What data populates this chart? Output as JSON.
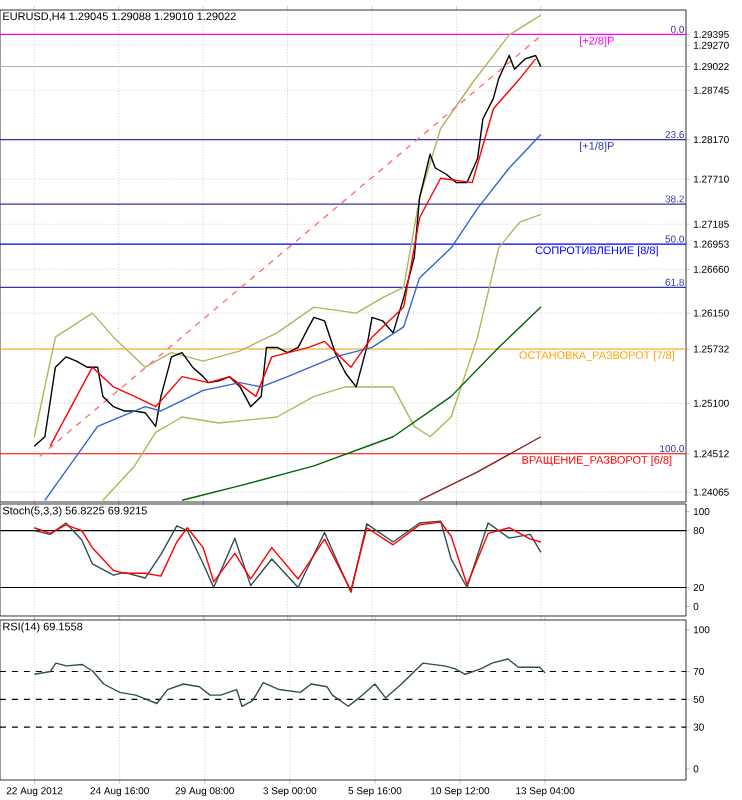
{
  "chart_data": [
    {
      "type": "line",
      "title": "EURUSD,H4  1.29045 1.29088 1.29010 1.29022",
      "ylim": [
        1.2395,
        1.2968
      ],
      "grid": true,
      "categories": [
        null,
        null,
        null,
        null,
        null,
        null,
        null,
        null,
        null,
        null,
        null,
        null,
        null,
        null,
        null,
        null,
        null,
        null,
        null,
        null,
        null,
        null,
        null,
        null,
        null,
        null,
        null,
        null,
        null,
        null,
        null,
        null,
        null,
        null,
        null,
        null,
        null,
        null,
        null,
        null,
        null,
        null,
        null,
        null,
        null,
        null,
        null,
        null,
        null,
        null,
        null,
        null,
        null,
        null,
        null,
        null,
        null,
        null,
        null,
        null,
        null,
        null,
        null,
        null,
        null,
        null,
        null,
        null,
        null,
        null,
        null,
        null,
        null,
        null,
        null,
        null,
        null,
        null,
        null,
        null,
        null,
        null,
        null,
        null,
        null,
        null,
        null,
        null,
        null,
        null,
        null,
        null,
        null,
        null,
        null,
        null,
        null,
        null,
        null,
        null,
        null,
        null,
        null,
        null,
        null,
        null,
        null,
        null,
        null,
        null,
        null,
        null,
        null,
        null,
        null,
        null,
        null,
        null,
        null,
        null,
        null,
        null,
        null,
        null,
        null,
        null,
        null,
        null,
        null,
        null
      ],
      "yticks": [
        {
          "value": 1.24065,
          "label": "1.24065"
        },
        {
          "value": 1.24512,
          "label": "1.24512"
        },
        {
          "value": 1.251,
          "label": "1.25100"
        },
        {
          "value": 1.25732,
          "label": "1.25732"
        },
        {
          "value": 1.2615,
          "label": "1.26150"
        },
        {
          "value": 1.2666,
          "label": "1.26660"
        },
        {
          "value": 1.26953,
          "label": "1.26953"
        },
        {
          "value": 1.27185,
          "label": "1.27185"
        },
        {
          "value": 1.2771,
          "label": "1.27710"
        },
        {
          "value": 1.2817,
          "label": "1.28170"
        },
        {
          "value": 1.28745,
          "label": "1.28745"
        },
        {
          "value": 1.29022,
          "label": "1.29022"
        },
        {
          "value": 1.2927,
          "label": "1.29270"
        },
        {
          "value": 1.29395,
          "label": "1.29395"
        }
      ],
      "series": [
        {
          "color": "#b5b35c",
          "values": [
            null,
            null,
            null,
            null,
            null,
            null,
            1.2471,
            null,
            null,
            null,
            1.2587,
            null,
            null,
            null,
            null,
            null,
            null,
            1.2615,
            null,
            null,
            null,
            1.2587,
            null,
            null,
            null,
            null,
            null,
            1.2552,
            null,
            null,
            null,
            null,
            1.2569,
            null,
            null,
            null,
            null,
            null,
            1.2559,
            null,
            null,
            null,
            null,
            null,
            null,
            1.2571,
            null,
            null,
            null,
            null,
            null,
            null,
            1.2592,
            null,
            null,
            null,
            null,
            null,
            null,
            1.2622,
            null,
            null,
            null,
            null,
            null,
            null,
            null,
            1.2615,
            null,
            null,
            null,
            null,
            1.2633,
            null,
            null,
            null,
            1.2645,
            null,
            null,
            1.2749,
            null,
            null,
            null,
            1.283,
            null,
            null,
            null,
            null,
            null,
            1.2883,
            null,
            null,
            null,
            null,
            null,
            null,
            1.2939,
            null,
            null,
            null,
            null,
            null,
            1.2962,
            null,
            null,
            null,
            null,
            null,
            null,
            null,
            null,
            null,
            null,
            null,
            null,
            null,
            null,
            null,
            null,
            null,
            null,
            null,
            null,
            null,
            null,
            null,
            null,
            null,
            null,
            null
          ]
        },
        {
          "color": "#b5b35c",
          "values": [
            null,
            null,
            null,
            null,
            null,
            null,
            null,
            null,
            null,
            null,
            null,
            null,
            null,
            null,
            null,
            null,
            null,
            null,
            null,
            1.2397,
            null,
            null,
            null,
            null,
            null,
            1.2437,
            null,
            null,
            null,
            1.2476,
            null,
            null,
            null,
            null,
            1.2494,
            null,
            null,
            null,
            null,
            null,
            null,
            1.2487,
            null,
            null,
            null,
            null,
            null,
            null,
            null,
            null,
            null,
            null,
            1.2494,
            null,
            null,
            null,
            null,
            null,
            null,
            1.2518,
            null,
            null,
            null,
            null,
            null,
            1.2529,
            null,
            null,
            null,
            null,
            null,
            null,
            null,
            null,
            1.2529,
            null,
            null,
            null,
            1.2483,
            null,
            null,
            1.2471,
            null,
            null,
            null,
            1.2494,
            null,
            null,
            null,
            null,
            1.2587,
            null,
            null,
            null,
            1.2691,
            null,
            null,
            null,
            1.2721,
            null,
            null,
            null,
            1.273,
            null,
            null,
            null,
            null,
            null,
            null,
            null,
            null,
            null,
            null,
            null,
            null,
            null,
            null,
            null,
            null,
            null,
            null,
            null,
            null,
            null,
            null,
            null,
            null,
            null,
            null,
            null
          ]
        },
        {
          "color": "#ff7070",
          "line_style": "dashed",
          "values": [
            null,
            null,
            null,
            null,
            null,
            null,
            null,
            1.2448,
            null,
            null,
            null,
            null,
            null,
            null,
            null,
            null,
            null,
            null,
            null,
            null,
            null,
            null,
            null,
            null,
            null,
            null,
            null,
            null,
            null,
            null,
            null,
            null,
            null,
            null,
            null,
            null,
            null,
            null,
            null,
            null,
            null,
            null,
            null,
            null,
            null,
            null,
            null,
            null,
            null,
            null,
            null,
            null,
            null,
            null,
            null,
            null,
            null,
            null,
            null,
            null,
            null,
            null,
            null,
            null,
            null,
            null,
            null,
            null,
            null,
            null,
            null,
            null,
            null,
            null,
            null,
            null,
            null,
            null,
            null,
            null,
            null,
            null,
            null,
            null,
            null,
            null,
            null,
            null,
            null,
            null,
            null,
            null,
            null,
            null,
            null,
            null,
            null,
            null,
            null,
            null,
            null,
            null,
            1.2938,
            null,
            null,
            null,
            null,
            null,
            null,
            null,
            null,
            null,
            null,
            null,
            null,
            null,
            null,
            null,
            null,
            null,
            null,
            null,
            null,
            null,
            null,
            null,
            null,
            null,
            null,
            null
          ]
        },
        {
          "color": "#006400",
          "values": [
            null,
            null,
            null,
            null,
            null,
            null,
            null,
            null,
            null,
            null,
            null,
            null,
            null,
            null,
            null,
            null,
            null,
            null,
            null,
            null,
            null,
            null,
            null,
            null,
            null,
            null,
            null,
            null,
            null,
            null,
            null,
            null,
            null,
            null,
            1.2397,
            null,
            null,
            null,
            null,
            null,
            null,
            null,
            null,
            null,
            null,
            1.2414,
            null,
            null,
            null,
            null,
            null,
            null,
            null,
            null,
            null,
            null,
            null,
            null,
            null,
            1.2437,
            null,
            null,
            null,
            null,
            null,
            null,
            null,
            null,
            null,
            null,
            null,
            null,
            null,
            null,
            1.2471,
            null,
            null,
            null,
            null,
            null,
            null,
            null,
            null,
            null,
            null,
            1.2518,
            null,
            null,
            null,
            null,
            null,
            null,
            null,
            null,
            1.2575,
            null,
            null,
            null,
            null,
            null,
            null,
            null,
            1.2622,
            null,
            null,
            null,
            null,
            null,
            null,
            null,
            null,
            null,
            null,
            null,
            null,
            null,
            null,
            null,
            null,
            null,
            null,
            null,
            null,
            null,
            null,
            null,
            null,
            null,
            null,
            null
          ]
        },
        {
          "color": "#8b1a1a",
          "values": [
            null,
            null,
            null,
            null,
            null,
            null,
            null,
            null,
            null,
            null,
            null,
            null,
            null,
            null,
            null,
            null,
            null,
            null,
            null,
            null,
            null,
            null,
            null,
            null,
            null,
            null,
            null,
            null,
            null,
            null,
            null,
            null,
            null,
            null,
            null,
            null,
            null,
            null,
            null,
            null,
            null,
            null,
            null,
            null,
            null,
            null,
            null,
            null,
            null,
            null,
            null,
            null,
            null,
            null,
            null,
            null,
            null,
            null,
            null,
            null,
            null,
            null,
            null,
            null,
            null,
            null,
            null,
            null,
            null,
            null,
            null,
            null,
            null,
            null,
            null,
            null,
            null,
            null,
            null,
            1.2397,
            null,
            null,
            null,
            null,
            null,
            null,
            null,
            null,
            null,
            null,
            1.243,
            null,
            null,
            null,
            null,
            null,
            null,
            null,
            null,
            null,
            null,
            null,
            1.2471,
            null,
            null,
            null,
            null,
            null,
            null,
            null,
            null,
            null,
            null,
            null,
            null,
            null,
            null,
            null,
            null,
            null,
            null,
            null,
            null,
            null,
            null,
            null,
            null,
            null,
            null,
            null
          ]
        },
        {
          "color": "#000000",
          "values": [
            null,
            null,
            null,
            null,
            null,
            null,
            1.246,
            null,
            1.2471,
            null,
            1.2552,
            null,
            1.2564,
            null,
            1.2559,
            null,
            1.2552,
            null,
            1.2552,
            1.2518,
            null,
            1.2506,
            null,
            1.2501,
            null,
            1.2501,
            null,
            1.2499,
            null,
            1.2483,
            1.2518,
            null,
            1.2564,
            null,
            1.2569,
            null,
            1.2552,
            null,
            1.2541,
            1.2534,
            null,
            1.2536,
            null,
            1.2541,
            null,
            1.2529,
            null,
            1.2506,
            null,
            1.2518,
            1.2575,
            null,
            1.2575,
            null,
            1.2569,
            null,
            1.2575,
            null,
            1.2599,
            1.261,
            null,
            1.2606,
            null,
            1.2569,
            null,
            1.2545,
            null,
            1.2529,
            null,
            1.2575,
            1.261,
            null,
            1.2606,
            null,
            1.2592,
            null,
            1.2633,
            null,
            1.268,
            1.2749,
            null,
            1.28,
            1.2784,
            null,
            1.2777,
            null,
            1.2767,
            null,
            1.2767,
            null,
            1.2795,
            1.2841,
            null,
            1.2865,
            1.2888,
            null,
            1.2915,
            1.2899,
            null,
            1.2911,
            null,
            1.2915,
            1.2902,
            null,
            null,
            null,
            null,
            null,
            null,
            null,
            null,
            null,
            null,
            null,
            null,
            null,
            null,
            null,
            null,
            null,
            null,
            null,
            null,
            null,
            null,
            null,
            null,
            null,
            null,
            null
          ]
        },
        {
          "color": "#3366cc",
          "values": [
            null,
            null,
            null,
            null,
            null,
            null,
            null,
            null,
            1.2397,
            null,
            null,
            null,
            null,
            null,
            null,
            null,
            null,
            null,
            1.2483,
            null,
            null,
            null,
            null,
            null,
            null,
            null,
            null,
            1.2506,
            null,
            null,
            1.2501,
            null,
            null,
            null,
            null,
            null,
            null,
            null,
            1.2525,
            null,
            null,
            null,
            null,
            null,
            null,
            1.2534,
            null,
            null,
            null,
            1.2529,
            null,
            null,
            null,
            null,
            1.2541,
            null,
            null,
            null,
            null,
            null,
            null,
            null,
            null,
            1.2564,
            null,
            null,
            null,
            null,
            null,
            null,
            1.2575,
            null,
            null,
            null,
            null,
            null,
            1.2599,
            null,
            null,
            1.2656,
            null,
            null,
            null,
            null,
            null,
            1.2691,
            null,
            null,
            null,
            null,
            1.2737,
            null,
            null,
            null,
            null,
            null,
            1.2784,
            null,
            null,
            null,
            null,
            null,
            1.2823,
            null,
            null,
            null,
            null,
            null,
            null,
            null,
            null,
            null,
            null,
            null,
            null,
            null,
            null,
            null,
            null,
            null,
            null,
            null,
            null,
            null,
            null,
            null,
            null,
            null,
            null,
            null
          ]
        },
        {
          "color": "#ff0000",
          "values": [
            null,
            null,
            null,
            null,
            null,
            null,
            null,
            null,
            null,
            1.246,
            null,
            null,
            null,
            null,
            null,
            null,
            null,
            1.2552,
            null,
            null,
            null,
            1.2529,
            null,
            null,
            null,
            1.2518,
            null,
            null,
            null,
            1.2506,
            null,
            null,
            null,
            null,
            1.2541,
            null,
            null,
            null,
            null,
            1.2534,
            null,
            null,
            null,
            1.2541,
            null,
            null,
            null,
            null,
            1.2518,
            null,
            null,
            1.2564,
            null,
            null,
            null,
            null,
            null,
            null,
            1.2575,
            null,
            null,
            1.2582,
            null,
            null,
            null,
            null,
            1.2552,
            null,
            null,
            null,
            1.2587,
            null,
            null,
            null,
            null,
            null,
            1.2622,
            null,
            null,
            1.2726,
            null,
            null,
            null,
            1.2772,
            null,
            null,
            null,
            null,
            null,
            1.2767,
            null,
            null,
            null,
            1.2853,
            null,
            null,
            null,
            null,
            1.2888,
            null,
            null,
            1.2911,
            null,
            null,
            null,
            null,
            null,
            null,
            null,
            null,
            null,
            null,
            null,
            null,
            null,
            null,
            null,
            null,
            null,
            null,
            null,
            null,
            null,
            null,
            null,
            null,
            null,
            null,
            null,
            null
          ]
        }
      ],
      "ref_lines": [
        {
          "axis": "y",
          "value": 1.29395,
          "label": "[+2/8]P",
          "color": "#ff00ff"
        },
        {
          "axis": "y",
          "value": 1.2817,
          "label": "[+1/8]P",
          "color": "#3333aa"
        },
        {
          "axis": "y",
          "value": 1.2742,
          "color": "#3333aa"
        },
        {
          "axis": "y",
          "value": 1.26953,
          "label": "СОПРОТИВЛЕНИЕ [8/8]",
          "color": "#0000ff"
        },
        {
          "axis": "y",
          "value": 1.2645,
          "color": "#3333aa"
        },
        {
          "axis": "y",
          "value": 1.24512,
          "label": "ВРАЩЕНИЕ_РАЗВОРОТ [6/8]",
          "color": "#ff0000"
        },
        {
          "axis": "y",
          "value": 1.25732,
          "label": "ОСТАНОВКА_РАЗВОРОТ [7/8]",
          "color": "#ffa500"
        },
        {
          "axis": "y",
          "value": 1.29022,
          "color": "#b0b0b0"
        }
      ],
      "annotations": [
        "0.0",
        "23.6",
        "38.2",
        "50.0",
        "61.8",
        "100.0"
      ]
    },
    {
      "type": "line",
      "title": "Stoch(5,3,3) 56.8225 69.9215",
      "ylim": [
        -10,
        108
      ],
      "grid": "x",
      "categories": [
        null,
        null,
        null,
        null,
        null,
        null,
        null,
        null,
        null,
        null,
        null,
        null,
        null,
        null,
        null,
        null,
        null,
        null,
        null,
        null,
        null,
        null,
        null,
        null,
        null,
        null,
        null,
        null,
        null,
        null,
        null,
        null,
        null,
        null,
        null,
        null,
        null,
        null,
        null,
        null,
        null,
        null,
        null,
        null,
        null,
        null,
        null,
        null,
        null,
        null,
        null,
        null,
        null,
        null,
        null,
        null,
        null,
        null,
        null,
        null,
        null,
        null,
        null,
        null,
        null,
        null,
        null,
        null,
        null,
        null,
        null,
        null,
        null,
        null,
        null,
        null,
        null,
        null,
        null,
        null,
        null,
        null,
        null,
        null,
        null,
        null,
        null,
        null,
        null,
        null,
        null,
        null,
        null,
        null,
        null,
        null,
        null,
        null,
        null,
        null,
        null,
        null,
        null,
        null,
        null,
        null,
        null,
        null,
        null,
        null,
        null,
        null,
        null,
        null,
        null,
        null,
        null,
        null,
        null,
        null,
        null,
        null,
        null,
        null,
        null,
        null,
        null,
        null,
        null,
        null
      ],
      "yticks": [
        0,
        20,
        80,
        100
      ],
      "series": [
        {
          "color": "#2f4f4f",
          "values": [
            null,
            null,
            null,
            null,
            null,
            null,
            80,
            null,
            null,
            76,
            null,
            null,
            88,
            null,
            null,
            70,
            null,
            45,
            null,
            null,
            null,
            33,
            null,
            36,
            null,
            null,
            null,
            30,
            null,
            null,
            55,
            null,
            null,
            85,
            null,
            80,
            null,
            null,
            45,
            null,
            20,
            null,
            null,
            null,
            72,
            null,
            null,
            22,
            null,
            null,
            null,
            50,
            null,
            null,
            null,
            null,
            20,
            null,
            null,
            null,
            null,
            78,
            null,
            null,
            null,
            null,
            15,
            null,
            null,
            87,
            null,
            null,
            null,
            null,
            68,
            null,
            null,
            null,
            null,
            88,
            null,
            null,
            null,
            90,
            null,
            50,
            null,
            null,
            20,
            null,
            null,
            null,
            88,
            null,
            null,
            null,
            72,
            null,
            null,
            null,
            76,
            null,
            57,
            null,
            null,
            null,
            null,
            null,
            null,
            null,
            null,
            null,
            null,
            null,
            null,
            null,
            null,
            null,
            null,
            null,
            null,
            null,
            null,
            null,
            null,
            null,
            null,
            null,
            null,
            null
          ]
        },
        {
          "color": "#ff0000",
          "values": [
            null,
            null,
            null,
            null,
            null,
            null,
            83,
            null,
            null,
            77,
            null,
            null,
            86,
            null,
            null,
            80,
            null,
            62,
            null,
            null,
            null,
            38,
            null,
            35,
            null,
            null,
            null,
            35,
            null,
            null,
            32,
            null,
            null,
            68,
            null,
            83,
            null,
            null,
            62,
            null,
            26,
            null,
            null,
            null,
            56,
            null,
            null,
            29,
            null,
            null,
            null,
            62,
            null,
            null,
            null,
            null,
            29,
            null,
            null,
            null,
            null,
            71,
            null,
            null,
            null,
            null,
            17,
            null,
            null,
            83,
            null,
            null,
            null,
            null,
            65,
            null,
            null,
            null,
            null,
            86,
            null,
            null,
            null,
            89,
            null,
            74,
            null,
            null,
            23,
            null,
            null,
            null,
            77,
            null,
            null,
            null,
            83,
            null,
            null,
            null,
            71,
            null,
            68,
            null,
            null,
            null,
            null,
            null,
            null,
            null,
            null,
            null,
            null,
            null,
            null,
            null,
            null,
            null,
            null,
            null,
            null,
            null,
            null,
            null,
            null,
            null,
            null,
            null,
            null,
            null
          ]
        }
      ],
      "ref_lines": [
        {
          "axis": "y",
          "value": 80,
          "color": "#000000"
        },
        {
          "axis": "y",
          "value": 20,
          "color": "#000000"
        }
      ]
    },
    {
      "type": "line",
      "title": "RSI(14) 69.1558",
      "ylim": [
        -8,
        107
      ],
      "grid": "x",
      "categories": [
        null,
        null,
        null,
        null,
        null,
        null,
        "22 Aug 2012",
        null,
        null,
        null,
        null,
        null,
        null,
        null,
        null,
        null,
        null,
        null,
        null,
        null,
        null,
        null,
        "24 Aug 16:00",
        null,
        null,
        null,
        null,
        null,
        null,
        null,
        null,
        null,
        null,
        null,
        null,
        null,
        null,
        null,
        "29 Aug 08:00",
        null,
        null,
        null,
        null,
        null,
        null,
        null,
        null,
        null,
        null,
        null,
        null,
        null,
        null,
        null,
        "3 Sep 00:00",
        null,
        null,
        null,
        null,
        null,
        null,
        null,
        null,
        null,
        null,
        null,
        null,
        null,
        null,
        null,
        "5 Sep 16:00",
        null,
        null,
        null,
        null,
        null,
        null,
        null,
        null,
        null,
        null,
        null,
        null,
        null,
        null,
        null,
        "10 Sep 12:00",
        null,
        null,
        null,
        null,
        null,
        null,
        null,
        null,
        null,
        null,
        null,
        null,
        null,
        null,
        null,
        "13 Sep 04:00",
        null,
        null,
        null,
        null,
        null,
        null,
        null,
        null,
        null,
        null,
        null,
        null,
        null,
        null,
        null,
        null,
        null,
        null,
        null,
        null,
        null,
        null,
        null,
        null,
        null,
        null
      ],
      "yticks": [
        0,
        30,
        50,
        70,
        100
      ],
      "series": [
        {
          "color": "#2f4f4f",
          "values": [
            null,
            null,
            null,
            null,
            null,
            null,
            68,
            null,
            null,
            70,
            76,
            null,
            74,
            null,
            null,
            75,
            null,
            70,
            null,
            61,
            null,
            null,
            55,
            null,
            null,
            53,
            null,
            null,
            null,
            47,
            null,
            57,
            null,
            null,
            61,
            null,
            null,
            59,
            null,
            53,
            null,
            53,
            null,
            null,
            57,
            45,
            null,
            49,
            null,
            62,
            null,
            null,
            57,
            null,
            null,
            null,
            55,
            null,
            61,
            null,
            null,
            59,
            53,
            null,
            null,
            45,
            null,
            51,
            null,
            null,
            61,
            null,
            51,
            null,
            null,
            61,
            null,
            null,
            null,
            76,
            null,
            null,
            null,
            74,
            null,
            72,
            null,
            68,
            null,
            null,
            72,
            null,
            76,
            null,
            null,
            79,
            null,
            73,
            null,
            null,
            null,
            73,
            69,
            null,
            null,
            null,
            null,
            null,
            null,
            null,
            null,
            null,
            null,
            null,
            null,
            null,
            null,
            null,
            null,
            null,
            null,
            null,
            null,
            null,
            null,
            null,
            null,
            null,
            null
          ]
        }
      ],
      "ref_lines": [
        {
          "axis": "y",
          "value": 70,
          "color": "#000000",
          "line_style": "dashed"
        },
        {
          "axis": "y",
          "value": 50,
          "color": "#000000",
          "line_style": "dashed"
        },
        {
          "axis": "y",
          "value": 30,
          "color": "#000000",
          "line_style": "dashed"
        }
      ]
    }
  ]
}
